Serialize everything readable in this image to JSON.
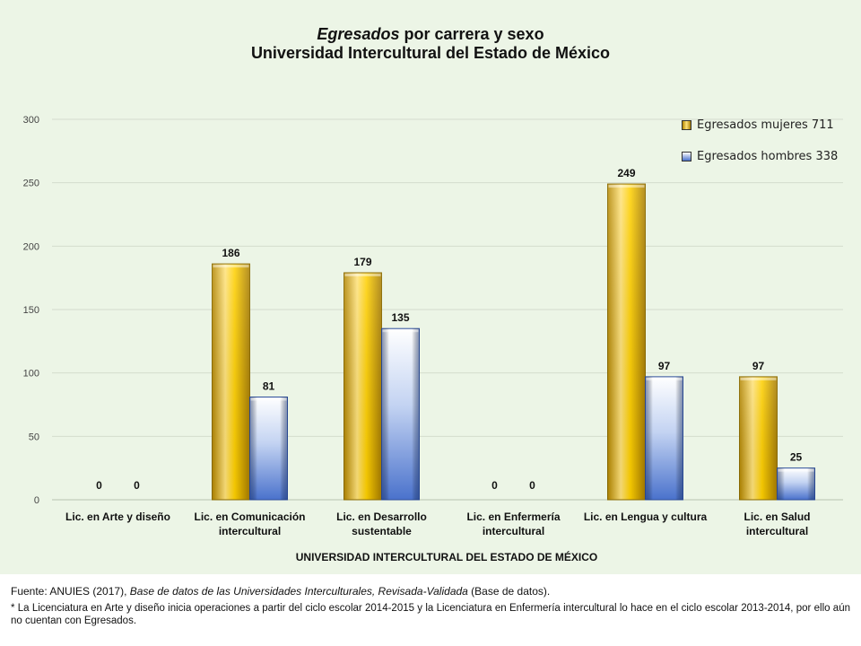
{
  "chart_data": {
    "type": "bar",
    "title_part1": "Egresados",
    "title_part2": " por carrera y sexo",
    "subtitle": "Universidad Intercultural del Estado de México",
    "xlabel": "UNIVERSIDAD INTERCULTURAL DEL ESTADO DE MÉXICO",
    "ylabel": "",
    "ylim": [
      0,
      300
    ],
    "yticks": [
      "0",
      "50",
      "100",
      "150",
      "200",
      "250",
      "300"
    ],
    "grid": true,
    "legend_position": "top-right",
    "categories": [
      [
        "Lic. en Arte y diseño"
      ],
      [
        "Lic. en Comunicación",
        "intercultural"
      ],
      [
        "Lic. en Desarrollo",
        "sustentable"
      ],
      [
        "Lic. en Enfermería",
        "intercultural"
      ],
      [
        "Lic. en Lengua y cultura"
      ],
      [
        "Lic. en Salud",
        "intercultural"
      ]
    ],
    "series": [
      {
        "name": "Egresados mujeres 711",
        "values": [
          0,
          186,
          179,
          0,
          249,
          97
        ],
        "color": "#f5c518"
      },
      {
        "name": "Egresados hombres 338",
        "values": [
          0,
          81,
          135,
          0,
          97,
          25
        ],
        "color": "#6d8fd6"
      }
    ]
  },
  "footer": {
    "source_prefix": "Fuente: ANUIES (2017),  ",
    "source_italic": "Base de datos de las Universidades Interculturales, Revisada-Validada",
    "source_suffix": "  (Base de datos).",
    "note": "* La Licenciatura en Arte y diseño inicia operaciones  a partir del ciclo escolar 2014-2015  y la Licenciatura  en Enfermería  intercultural  lo hace en el ciclo escolar 2013-2014,  por ello aún no cuentan con Egresados."
  }
}
